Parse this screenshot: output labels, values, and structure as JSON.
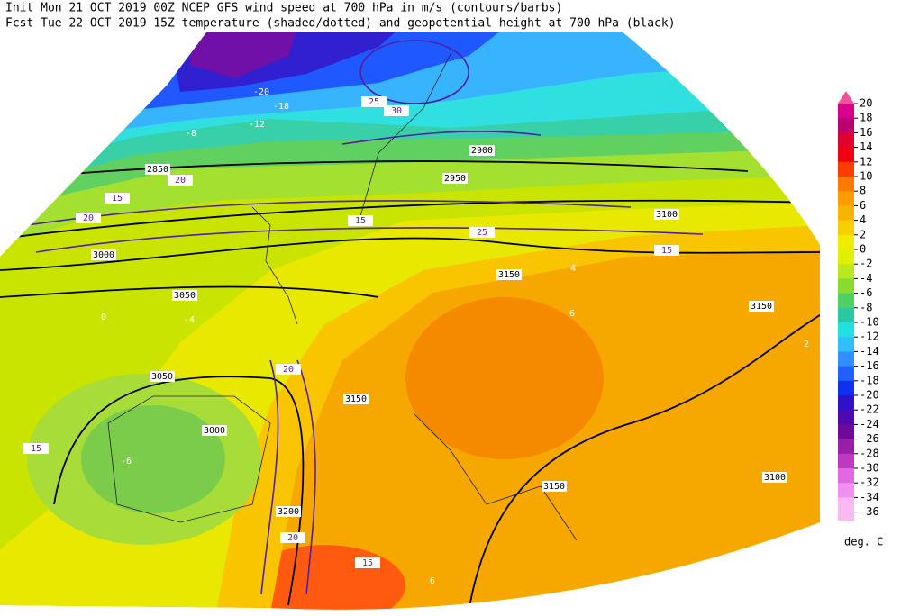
{
  "header": {
    "line1": "Init  Mon 21 OCT 2019 00Z  NCEP GFS wind speed at 700 hPa in m/s (contours/barbs)",
    "line2": "Fcst Tue 22 OCT 2019 15Z  temperature (shaded/dotted) and geopotential height at 700 hPa (black)"
  },
  "map": {
    "height_labels": [
      2850,
      2900,
      2950,
      3000,
      3050,
      3100,
      3150,
      3150,
      3050,
      3000,
      3150,
      3200,
      3150,
      3100
    ],
    "temperature_labels": [
      -20,
      -18,
      -12,
      -8,
      -4,
      -6,
      6,
      4,
      2,
      0,
      6
    ],
    "wind_labels": [
      15,
      20,
      20,
      25,
      30,
      25,
      15,
      20,
      15,
      15,
      20,
      15
    ]
  },
  "colorbar": {
    "ticks": [
      20,
      18,
      16,
      14,
      12,
      10,
      8,
      6,
      4,
      2,
      0,
      -2,
      -4,
      -6,
      -8,
      -10,
      -12,
      -14,
      -16,
      -18,
      -20,
      -22,
      -24,
      -26,
      -28,
      -30,
      -32,
      -34,
      -36
    ],
    "colors": [
      "#f0509c",
      "#d8008c",
      "#b80070",
      "#e00030",
      "#f00010",
      "#ff3c00",
      "#ff7800",
      "#ff9c00",
      "#f8b400",
      "#f8d000",
      "#f0ec00",
      "#e0f000",
      "#b8e820",
      "#88dc30",
      "#50d060",
      "#28c8a0",
      "#20e0e0",
      "#30c0f8",
      "#3090ff",
      "#2060ff",
      "#1030f0",
      "#3010c8",
      "#5008b0",
      "#700898",
      "#9820a8",
      "#c038c0",
      "#e068e0",
      "#f090f0",
      "#f8b8f0"
    ],
    "unit": "deg. C"
  }
}
